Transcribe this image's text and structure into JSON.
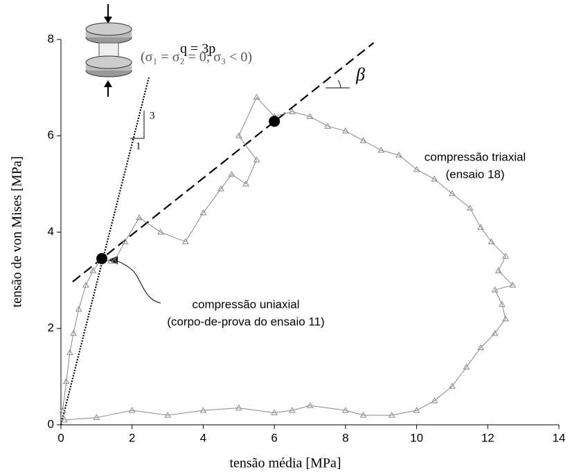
{
  "chart_data": {
    "type": "line",
    "x_label": "tensão média [MPa]",
    "y_label": "tensão de von Mises [MPa]",
    "xlim": [
      0,
      14
    ],
    "xticks": [
      0,
      2,
      4,
      6,
      8,
      10,
      12,
      14
    ],
    "ylim": [
      0,
      8
    ],
    "yticks": [
      0,
      2,
      4,
      6,
      8
    ],
    "series": [
      {
        "color": "#888888",
        "marker": "triangle",
        "x": [
          0.1,
          1,
          2,
          3,
          4,
          5,
          6,
          6.5,
          7,
          8,
          8.5,
          9.3,
          10,
          10.5,
          11,
          11.4,
          11.8,
          12.2,
          12.5,
          12.4,
          12.2,
          12.7,
          12.3,
          12.5,
          12.1,
          11.8,
          11.5,
          11,
          10.5,
          10,
          9.5,
          9,
          8.5,
          8,
          7.5,
          7,
          6.5,
          6,
          5.5,
          5,
          5.5,
          5.2,
          4.8,
          4.5,
          4,
          3.5,
          2.8,
          2.2,
          1.8,
          1.5
        ],
        "values": [
          0.1,
          0.15,
          0.3,
          0.2,
          0.3,
          0.35,
          0.25,
          0.3,
          0.4,
          0.3,
          0.2,
          0.2,
          0.3,
          0.5,
          0.8,
          1.2,
          1.6,
          1.9,
          2.2,
          2.5,
          2.8,
          2.9,
          3.2,
          3.5,
          3.8,
          4.1,
          4.5,
          4.8,
          5.1,
          5.3,
          5.6,
          5.7,
          5.9,
          6.1,
          6.2,
          6.4,
          6.5,
          6.4,
          6.8,
          6.0,
          5.5,
          5.0,
          5.2,
          4.9,
          4.4,
          3.8,
          4.0,
          4.3,
          3.8,
          3.4
        ]
      },
      {
        "color": "#888888",
        "marker": "triangle",
        "x": [
          0.05,
          0.15,
          0.25,
          0.35,
          0.5,
          0.7,
          0.9,
          1.1,
          1.4
        ],
        "values": [
          0.3,
          0.9,
          1.5,
          1.9,
          2.4,
          2.9,
          3.2,
          3.4,
          3.4
        ]
      }
    ],
    "lines": [
      {
        "x": [
          0,
          2.47
        ],
        "y": [
          0,
          7.21
        ],
        "style": "dotted",
        "color": "#000000"
      },
      {
        "x": [
          0.33,
          8.79
        ],
        "y": [
          2.97,
          7.93
        ],
        "style": "dashed",
        "color": "#000000"
      }
    ],
    "points": [
      {
        "x": 1.15,
        "y": 3.45,
        "color": "#000000"
      },
      {
        "x": 6.0,
        "y": 6.3,
        "color": "#000000"
      }
    ],
    "annotations": {
      "q_eq": "q = 3p",
      "sigma": "(σ₁ = σ₂ = 0; σ₃ < 0)",
      "slope_rise": "3",
      "slope_run": "1",
      "beta": "β",
      "triaxial_1": "compressão triaxial",
      "triaxial_2": "(ensaio 18)",
      "uniaxial_1": "compressão uniaxial",
      "uniaxial_2": "(corpo-de-prova do ensaio 11)"
    }
  }
}
